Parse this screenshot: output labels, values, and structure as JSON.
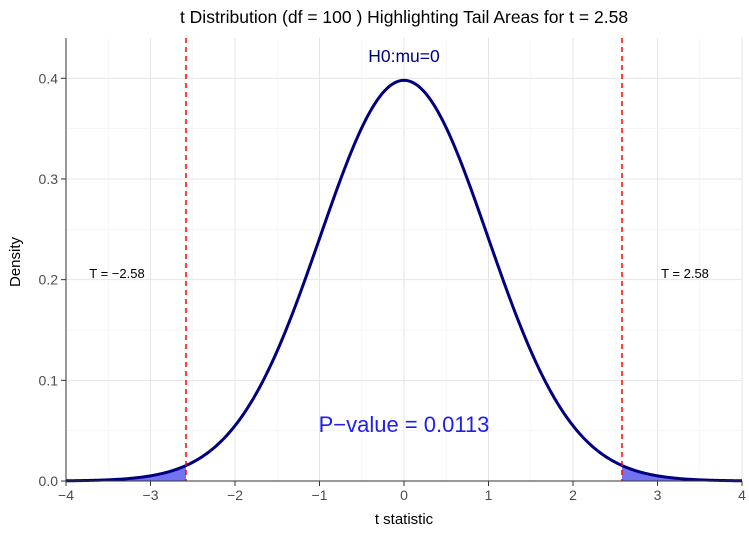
{
  "chart_data": {
    "type": "area",
    "title": "t Distribution (df = 100 ) Highlighting Tail Areas for t = 2.58",
    "xlabel": "t statistic",
    "ylabel": "Density",
    "xlim": [
      -4,
      4
    ],
    "ylim": [
      0,
      0.44
    ],
    "x_ticks": [
      -4,
      -3,
      -2,
      -1,
      0,
      1,
      2,
      3,
      4
    ],
    "x_tick_labels": [
      "−4",
      "−3",
      "−2",
      "−1",
      "0",
      "1",
      "2",
      "3",
      "4"
    ],
    "y_ticks": [
      0.0,
      0.1,
      0.2,
      0.3,
      0.4
    ],
    "y_tick_labels": [
      "0.0",
      "0.1",
      "0.2",
      "0.3",
      "0.4"
    ],
    "grid": true,
    "df": 100,
    "t_value": 2.58,
    "critical_lines": [
      -2.58,
      2.58
    ],
    "series": [
      {
        "x": [
          -4.0,
          -3.5,
          -3.0,
          -2.58,
          -2.5,
          -2.0,
          -1.5,
          -1.0,
          -0.5,
          0.0,
          0.5,
          1.0,
          1.5,
          2.0,
          2.5,
          2.58,
          3.0,
          3.5,
          4.0
        ],
        "y": [
          0.0002,
          0.001,
          0.0047,
          0.0145,
          0.0177,
          0.0548,
          0.1293,
          0.2407,
          0.351,
          0.3979,
          0.351,
          0.2407,
          0.1293,
          0.0548,
          0.0177,
          0.0145,
          0.0047,
          0.001,
          0.0002
        ],
        "color": "#00007F"
      }
    ],
    "shaded_tails": {
      "left": [
        -4,
        -2.58
      ],
      "right": [
        2.58,
        4
      ],
      "color": "#5B5BF0"
    },
    "annotations": {
      "hypothesis": "H0:mu=0",
      "left_t": "T = −2.58",
      "right_t": "T = 2.58",
      "p_value": "P−value = 0.0113"
    },
    "colors": {
      "curve": "#00007F",
      "shade": "#5B5BF0",
      "critical_line": "#FF0000",
      "hypothesis_text": "#00007F",
      "p_value_text": "#1E1EF0"
    }
  }
}
